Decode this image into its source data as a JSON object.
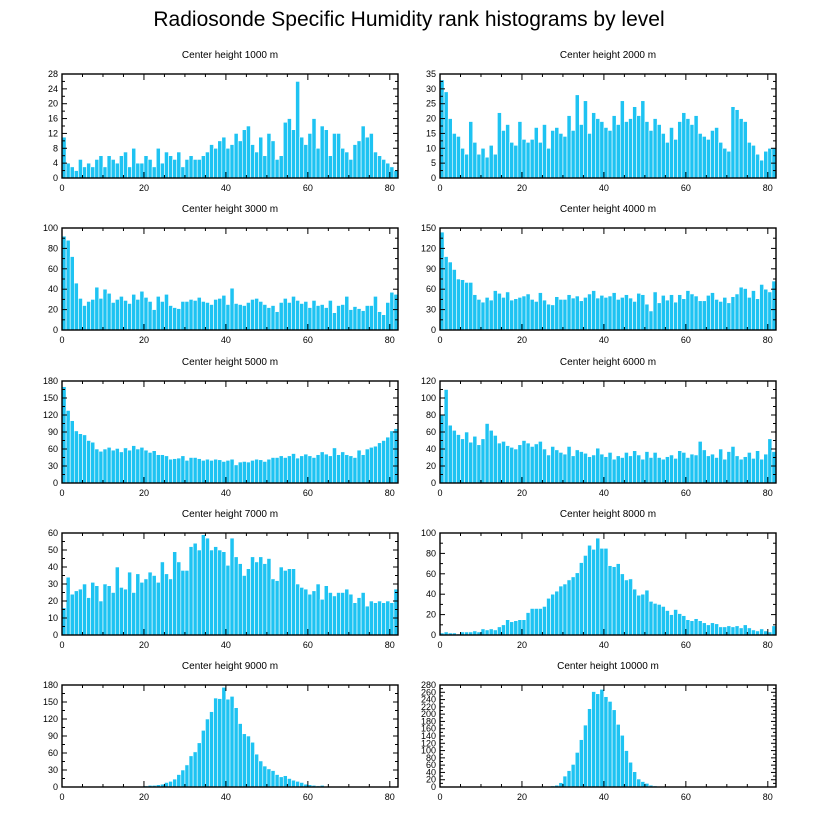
{
  "title": "Radiosonde Specific Humidity rank histograms by level",
  "style": {
    "bar_color": "#1ec3f2",
    "bar_edge": "#ffffff",
    "frame_color": "#000000"
  },
  "chart_data": [
    {
      "type": "bar",
      "title": "Center height 1000 m",
      "xlim": [
        0,
        82
      ],
      "ylim": [
        0,
        28
      ],
      "xticks": [
        0,
        20,
        40,
        60,
        80
      ],
      "yticks": [
        0,
        4,
        8,
        12,
        16,
        20,
        24,
        28
      ],
      "values": [
        11,
        4,
        3,
        2,
        5,
        3,
        4,
        3,
        5,
        6,
        3,
        6,
        5,
        4,
        6,
        7,
        3,
        8,
        4,
        4,
        6,
        5,
        3,
        8,
        4,
        7,
        6,
        5,
        7,
        3,
        5,
        6,
        5,
        5,
        6,
        7,
        9,
        8,
        10,
        11,
        8,
        9,
        12,
        10,
        13,
        14,
        9,
        7,
        11,
        6,
        12,
        10,
        5,
        6,
        15,
        16,
        13,
        26,
        11,
        9,
        12,
        16,
        8,
        14,
        13,
        6,
        12,
        12,
        8,
        7,
        5,
        9,
        10,
        14,
        11,
        12,
        7,
        6,
        5,
        4,
        3,
        2
      ]
    },
    {
      "type": "bar",
      "title": "Center height 2000 m",
      "xlim": [
        0,
        82
      ],
      "ylim": [
        0,
        35
      ],
      "xticks": [
        0,
        20,
        40,
        60,
        80
      ],
      "yticks": [
        0,
        5,
        10,
        15,
        20,
        25,
        30,
        35
      ],
      "values": [
        33,
        29,
        20,
        15,
        14,
        10,
        8,
        19,
        12,
        8,
        10,
        7,
        11,
        8,
        22,
        16,
        18,
        12,
        11,
        19,
        13,
        12,
        13,
        17,
        12,
        18,
        10,
        16,
        17,
        15,
        14,
        21,
        16,
        28,
        18,
        26,
        15,
        22,
        20,
        19,
        17,
        16,
        21,
        18,
        26,
        19,
        20,
        24,
        21,
        26,
        19,
        16,
        20,
        18,
        15,
        12,
        17,
        13,
        19,
        22,
        20,
        18,
        21,
        15,
        14,
        13,
        16,
        17,
        12,
        10,
        9,
        24,
        23,
        20,
        19,
        12,
        11,
        8,
        6,
        9,
        10,
        10
      ]
    },
    {
      "type": "bar",
      "title": "Center height 3000 m",
      "xlim": [
        0,
        82
      ],
      "ylim": [
        0,
        100
      ],
      "xticks": [
        0,
        20,
        40,
        60,
        80
      ],
      "yticks": [
        0,
        20,
        40,
        60,
        80,
        100
      ],
      "values": [
        92,
        88,
        72,
        46,
        31,
        24,
        28,
        30,
        42,
        31,
        40,
        36,
        27,
        30,
        33,
        29,
        26,
        35,
        30,
        38,
        32,
        28,
        20,
        33,
        28,
        35,
        24,
        22,
        21,
        28,
        28,
        30,
        29,
        32,
        28,
        27,
        25,
        30,
        31,
        34,
        25,
        41,
        26,
        25,
        24,
        27,
        30,
        31,
        28,
        25,
        22,
        24,
        18,
        27,
        31,
        27,
        33,
        29,
        26,
        28,
        22,
        29,
        24,
        25,
        22,
        29,
        17,
        24,
        25,
        33,
        20,
        23,
        21,
        19,
        24,
        24,
        33,
        18,
        15,
        27,
        37,
        35
      ]
    },
    {
      "type": "bar",
      "title": "Center height 4000 m",
      "xlim": [
        0,
        82
      ],
      "ylim": [
        0,
        150
      ],
      "xticks": [
        0,
        20,
        40,
        60,
        80
      ],
      "yticks": [
        0,
        30,
        60,
        90,
        120,
        150
      ],
      "values": [
        144,
        108,
        100,
        89,
        75,
        74,
        70,
        70,
        52,
        45,
        41,
        48,
        44,
        58,
        54,
        48,
        56,
        44,
        46,
        48,
        50,
        53,
        45,
        42,
        55,
        44,
        38,
        37,
        49,
        45,
        45,
        52,
        47,
        50,
        43,
        48,
        53,
        58,
        47,
        51,
        48,
        50,
        55,
        45,
        48,
        52,
        47,
        42,
        54,
        52,
        38,
        28,
        56,
        40,
        51,
        44,
        52,
        41,
        52,
        46,
        58,
        53,
        50,
        43,
        43,
        51,
        55,
        45,
        42,
        48,
        40,
        49,
        53,
        63,
        61,
        48,
        58,
        46,
        67,
        60,
        56,
        72
      ]
    },
    {
      "type": "bar",
      "title": "Center height 5000 m",
      "xlim": [
        0,
        82
      ],
      "ylim": [
        0,
        180
      ],
      "xticks": [
        0,
        20,
        40,
        60,
        80
      ],
      "yticks": [
        0,
        30,
        60,
        90,
        120,
        150,
        180
      ],
      "values": [
        170,
        128,
        110,
        92,
        87,
        85,
        75,
        72,
        60,
        56,
        60,
        63,
        58,
        61,
        55,
        62,
        58,
        66,
        60,
        63,
        58,
        54,
        57,
        50,
        50,
        48,
        42,
        43,
        44,
        48,
        40,
        45,
        45,
        43,
        40,
        42,
        40,
        42,
        41,
        38,
        40,
        42,
        32,
        37,
        38,
        37,
        40,
        42,
        41,
        38,
        42,
        45,
        45,
        48,
        45,
        48,
        52,
        44,
        48,
        51,
        48,
        45,
        50,
        55,
        51,
        48,
        62,
        50,
        55,
        50,
        48,
        45,
        58,
        50,
        60,
        63,
        65,
        71,
        75,
        81,
        92,
        96
      ]
    },
    {
      "type": "bar",
      "title": "Center height 6000 m",
      "xlim": [
        0,
        82
      ],
      "ylim": [
        0,
        120
      ],
      "xticks": [
        0,
        20,
        40,
        60,
        80
      ],
      "yticks": [
        0,
        20,
        40,
        60,
        80,
        100,
        120
      ],
      "values": [
        80,
        110,
        68,
        62,
        57,
        52,
        60,
        48,
        55,
        45,
        52,
        70,
        62,
        56,
        47,
        49,
        44,
        42,
        40,
        45,
        50,
        47,
        43,
        46,
        49,
        40,
        33,
        43,
        39,
        36,
        34,
        43,
        32,
        39,
        37,
        35,
        31,
        33,
        41,
        34,
        31,
        36,
        28,
        32,
        30,
        36,
        32,
        38,
        33,
        28,
        37,
        30,
        36,
        30,
        28,
        31,
        33,
        29,
        38,
        36,
        30,
        34,
        33,
        49,
        39,
        32,
        34,
        30,
        40,
        28,
        37,
        43,
        32,
        28,
        31,
        36,
        29,
        38,
        28,
        34,
        52,
        37
      ]
    },
    {
      "type": "bar",
      "title": "Center height 7000 m",
      "xlim": [
        0,
        82
      ],
      "ylim": [
        0,
        60
      ],
      "xticks": [
        0,
        20,
        40,
        60,
        80
      ],
      "yticks": [
        0,
        10,
        20,
        30,
        40,
        50,
        60
      ],
      "values": [
        16,
        34,
        24,
        26,
        27,
        30,
        22,
        31,
        29,
        20,
        30,
        29,
        25,
        40,
        28,
        27,
        37,
        25,
        36,
        31,
        33,
        37,
        35,
        31,
        43,
        36,
        33,
        49,
        43,
        38,
        38,
        52,
        54,
        50,
        59,
        57,
        50,
        52,
        50,
        49,
        41,
        57,
        46,
        42,
        35,
        39,
        46,
        43,
        46,
        42,
        45,
        33,
        32,
        40,
        38,
        39,
        39,
        30,
        28,
        27,
        24,
        26,
        30,
        21,
        29,
        25,
        23,
        25,
        25,
        27,
        24,
        19,
        22,
        25,
        17,
        20,
        19,
        20,
        19,
        20,
        19,
        27
      ]
    },
    {
      "type": "bar",
      "title": "Center height 8000 m",
      "xlim": [
        0,
        82
      ],
      "ylim": [
        0,
        100
      ],
      "xticks": [
        0,
        20,
        40,
        60,
        80
      ],
      "yticks": [
        0,
        20,
        40,
        60,
        80,
        100
      ],
      "values": [
        2,
        3,
        2,
        2,
        1,
        3,
        3,
        3,
        4,
        3,
        6,
        5,
        6,
        5,
        8,
        10,
        15,
        13,
        14,
        15,
        15,
        22,
        26,
        26,
        26,
        28,
        36,
        40,
        43,
        48,
        50,
        54,
        57,
        61,
        71,
        78,
        88,
        84,
        95,
        85,
        85,
        68,
        67,
        70,
        60,
        54,
        55,
        45,
        39,
        40,
        44,
        33,
        31,
        30,
        28,
        24,
        20,
        25,
        21,
        19,
        15,
        14,
        16,
        14,
        12,
        10,
        12,
        11,
        8,
        8,
        9,
        8,
        9,
        7,
        10,
        7,
        5,
        4,
        6,
        4,
        3,
        9
      ]
    },
    {
      "type": "bar",
      "title": "Center height 9000 m",
      "xlim": [
        0,
        82
      ],
      "ylim": [
        0,
        180
      ],
      "xticks": [
        0,
        20,
        40,
        60,
        80
      ],
      "yticks": [
        0,
        30,
        60,
        90,
        120,
        150,
        180
      ],
      "values": [
        0,
        0,
        0,
        0,
        0,
        0,
        0,
        0,
        0,
        0,
        0,
        0,
        0,
        0,
        0,
        0,
        0,
        0,
        0,
        0,
        2,
        3,
        3,
        4,
        5,
        8,
        10,
        14,
        22,
        30,
        39,
        55,
        62,
        78,
        100,
        120,
        133,
        157,
        156,
        176,
        155,
        160,
        140,
        112,
        94,
        90,
        79,
        58,
        46,
        37,
        32,
        29,
        22,
        18,
        20,
        15,
        12,
        10,
        8,
        5,
        4,
        3,
        2,
        3,
        1,
        1,
        0,
        1,
        0,
        0,
        0,
        0,
        0,
        1,
        0,
        0,
        0,
        0,
        1,
        0,
        0,
        0
      ]
    },
    {
      "type": "bar",
      "title": "Center height 10000 m",
      "xlim": [
        0,
        82
      ],
      "ylim": [
        0,
        280
      ],
      "xticks": [
        0,
        20,
        40,
        60,
        80
      ],
      "yticks": [
        0,
        20,
        40,
        60,
        80,
        100,
        120,
        140,
        160,
        180,
        200,
        220,
        240,
        260,
        280
      ],
      "values": [
        0,
        0,
        0,
        0,
        0,
        0,
        0,
        0,
        0,
        0,
        0,
        0,
        0,
        0,
        0,
        0,
        0,
        0,
        0,
        0,
        0,
        0,
        0,
        0,
        0,
        0,
        2,
        3,
        5,
        12,
        30,
        45,
        62,
        95,
        130,
        170,
        215,
        262,
        256,
        268,
        248,
        235,
        212,
        172,
        142,
        100,
        68,
        42,
        22,
        15,
        10,
        5,
        3,
        2,
        1,
        1,
        0,
        0,
        0,
        0,
        0,
        0,
        0,
        0,
        0,
        0,
        0,
        0,
        0,
        0,
        0,
        0,
        1,
        1,
        1,
        2,
        1,
        1,
        0,
        0,
        0,
        0
      ]
    }
  ]
}
